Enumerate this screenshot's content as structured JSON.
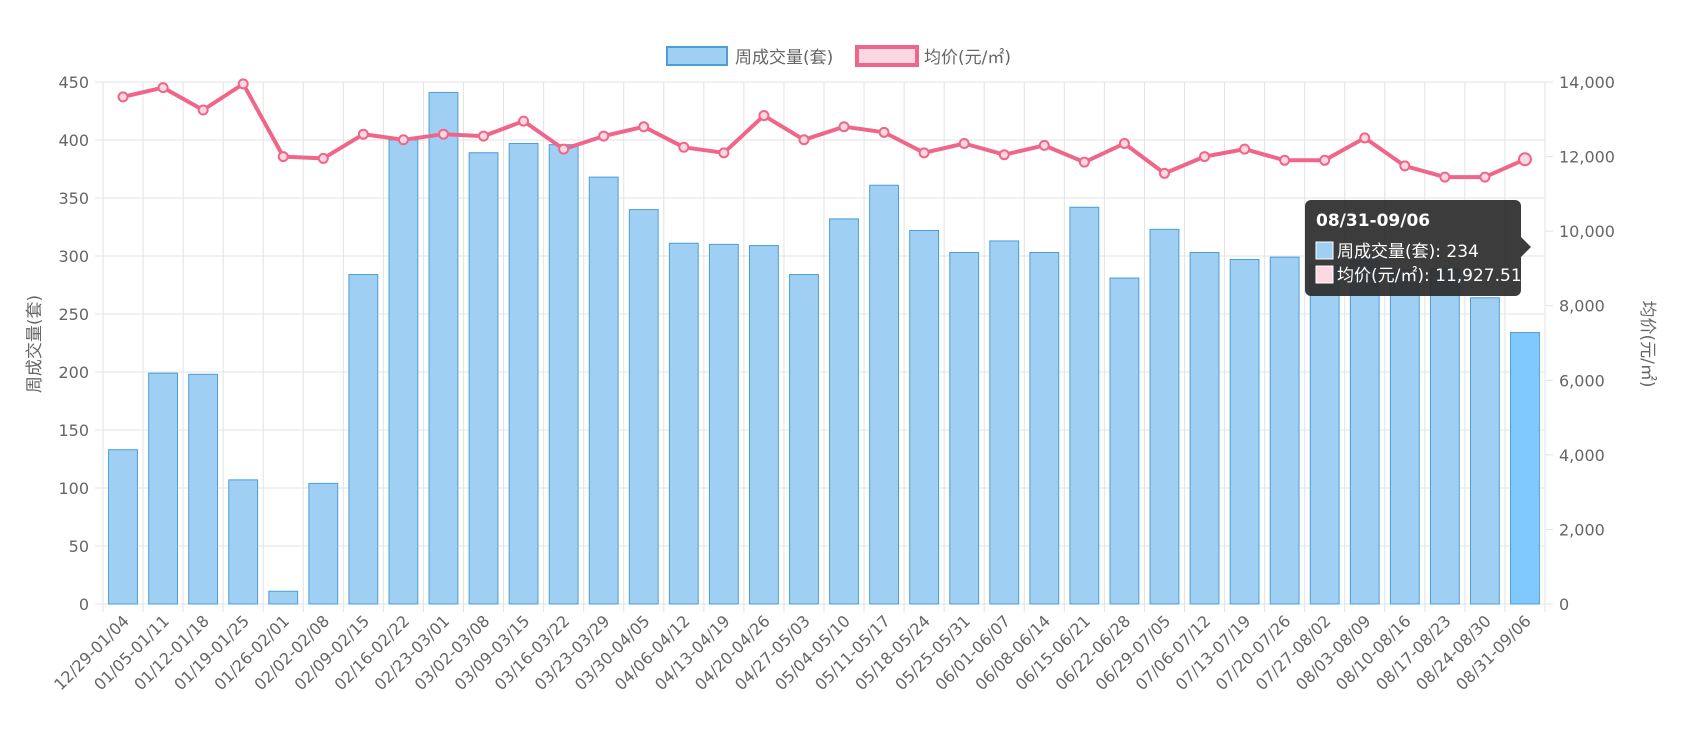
{
  "colors": {
    "bar_fill": "#9fcff2",
    "bar_stroke": "#4a9fd6",
    "bar_highlight": "#80c9ff",
    "line": "#f0668a",
    "point_fill": "#fcd8e2",
    "grid": "#e3e3e3",
    "tooltip_bg": "#2b2b2b"
  },
  "chart_data": {
    "type": "bar",
    "categories": [
      "12/29-01/04",
      "01/05-01/11",
      "01/12-01/18",
      "01/19-01/25",
      "01/26-02/01",
      "02/02-02/08",
      "02/09-02/15",
      "02/16-02/22",
      "02/23-03/01",
      "03/02-03/08",
      "03/09-03/15",
      "03/16-03/22",
      "03/23-03/29",
      "03/30-04/05",
      "04/06-04/12",
      "04/13-04/19",
      "04/20-04/26",
      "04/27-05/03",
      "05/04-05/10",
      "05/11-05/17",
      "05/18-05/24",
      "05/25-05/31",
      "06/01-06/07",
      "06/08-06/14",
      "06/15-06/21",
      "06/22-06/28",
      "06/29-07/05",
      "07/06-07/12",
      "07/13-07/19",
      "07/20-07/26",
      "07/27-08/02",
      "08/03-08/09",
      "08/10-08/16",
      "08/17-08/23",
      "08/24-08/30",
      "08/31-09/06"
    ],
    "series": [
      {
        "name": "周成交量(套)",
        "type": "bar",
        "axis": "left",
        "values": [
          133,
          199,
          198,
          107,
          11,
          104,
          284,
          400,
          441,
          389,
          397,
          396,
          368,
          340,
          311,
          310,
          309,
          284,
          332,
          361,
          322,
          303,
          313,
          303,
          342,
          281,
          323,
          303,
          297,
          299,
          292,
          296,
          288,
          289,
          264,
          234
        ]
      },
      {
        "name": "均价(元/㎡)",
        "type": "line",
        "axis": "right",
        "values": [
          13600,
          13850,
          13250,
          13950,
          12000,
          11950,
          12600,
          12450,
          12600,
          12550,
          12950,
          12200,
          12550,
          12800,
          12250,
          12100,
          13100,
          12450,
          12800,
          12650,
          12100,
          12350,
          12050,
          12300,
          11850,
          12350,
          11550,
          12000,
          12200,
          11900,
          11900,
          12500,
          11750,
          11450,
          11450,
          11927.51
        ]
      }
    ],
    "y_left": {
      "label": "周成交量(套)",
      "ylim": [
        0,
        450
      ],
      "ticks": [
        "0",
        "50",
        "100",
        "150",
        "200",
        "250",
        "300",
        "350",
        "400",
        "450"
      ]
    },
    "y_right": {
      "label": "均价(元/㎡)",
      "ylim": [
        0,
        14000
      ],
      "ticks": [
        "0",
        "2,000",
        "4,000",
        "6,000",
        "8,000",
        "10,000",
        "12,000",
        "14,000"
      ]
    },
    "grid": true,
    "legend_position": "top-center",
    "tooltip": {
      "title": "08/31-09/06",
      "lines": [
        "周成交量(套): 234",
        "均价(元/㎡): 11,927.51"
      ]
    }
  }
}
